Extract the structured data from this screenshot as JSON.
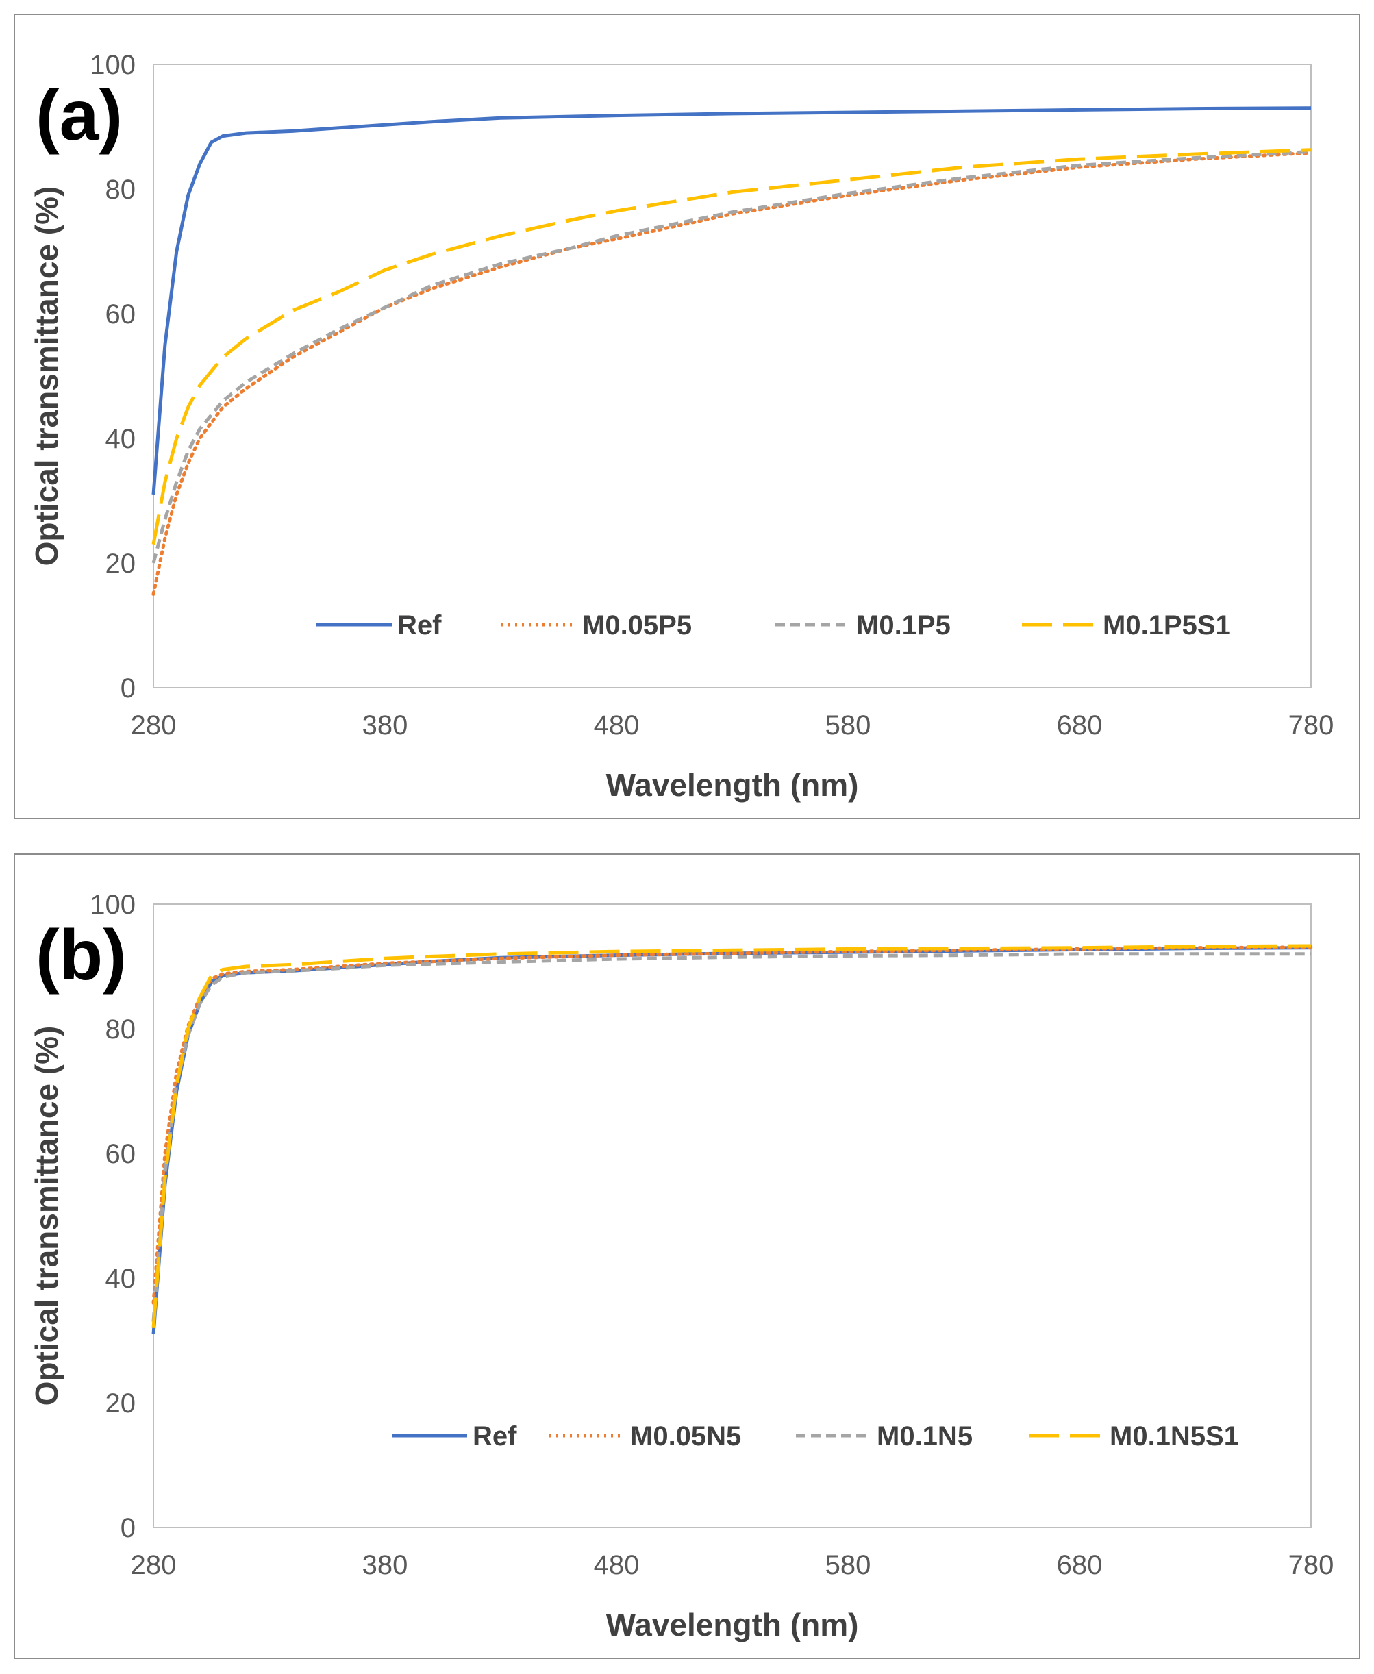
{
  "chart_data": [
    {
      "type": "line",
      "panel_label": "(a)",
      "xlabel": "Wavelength (nm)",
      "ylabel": "Optical transmittance (%)",
      "xlim": [
        280,
        780
      ],
      "ylim": [
        0,
        100
      ],
      "xticks": [
        "280",
        "380",
        "480",
        "580",
        "680",
        "780"
      ],
      "yticks": [
        "0",
        "20",
        "40",
        "60",
        "80",
        "100"
      ],
      "legend_position": "bottom-center",
      "series": [
        {
          "name": "Ref",
          "color": "#4472C4",
          "dash": "solid",
          "x": [
            280,
            285,
            290,
            295,
            300,
            305,
            310,
            320,
            340,
            360,
            380,
            400,
            430,
            480,
            530,
            580,
            630,
            680,
            730,
            780
          ],
          "y": [
            31,
            55,
            70,
            79,
            84,
            87.5,
            88.5,
            89,
            89.3,
            89.8,
            90.3,
            90.8,
            91.4,
            91.8,
            92.1,
            92.3,
            92.5,
            92.7,
            92.9,
            93
          ]
        },
        {
          "name": "M0.05P5",
          "color": "#ED7D31",
          "dash": "dot",
          "x": [
            280,
            285,
            290,
            295,
            300,
            310,
            320,
            340,
            360,
            380,
            400,
            430,
            460,
            480,
            530,
            580,
            630,
            680,
            730,
            780
          ],
          "y": [
            15,
            24,
            31,
            36,
            40,
            45,
            48,
            53,
            57,
            61,
            64,
            67.5,
            70.5,
            72,
            76,
            79,
            81.5,
            83.5,
            84.8,
            85.8
          ]
        },
        {
          "name": "M0.1P5",
          "color": "#A5A5A5",
          "dash": "dash",
          "x": [
            280,
            285,
            290,
            295,
            300,
            310,
            320,
            340,
            360,
            380,
            400,
            430,
            460,
            480,
            530,
            580,
            630,
            680,
            730,
            780
          ],
          "y": [
            20,
            27,
            33,
            38,
            41.5,
            46,
            49,
            53.5,
            57.5,
            61,
            64.5,
            68,
            70.5,
            72.5,
            76.3,
            79.3,
            81.8,
            83.8,
            85,
            86
          ]
        },
        {
          "name": "M0.1P5S1",
          "color": "#FFC000",
          "dash": "longdash",
          "x": [
            280,
            285,
            290,
            295,
            300,
            310,
            320,
            340,
            360,
            380,
            400,
            430,
            460,
            480,
            530,
            580,
            630,
            680,
            730,
            780
          ],
          "y": [
            23,
            33,
            40,
            45,
            48.5,
            53,
            56,
            60.5,
            63.5,
            67,
            69.5,
            72.5,
            75,
            76.5,
            79.5,
            81.5,
            83.5,
            84.8,
            85.6,
            86.3
          ]
        }
      ]
    },
    {
      "type": "line",
      "panel_label": "(b)",
      "xlabel": "Wavelength (nm)",
      "ylabel": "Optical transmittance (%)",
      "xlim": [
        280,
        780
      ],
      "ylim": [
        0,
        100
      ],
      "xticks": [
        "280",
        "380",
        "480",
        "580",
        "680",
        "780"
      ],
      "yticks": [
        "0",
        "20",
        "40",
        "60",
        "80",
        "100"
      ],
      "legend_position": "bottom-center",
      "series": [
        {
          "name": "Ref",
          "color": "#4472C4",
          "dash": "solid",
          "x": [
            280,
            285,
            290,
            295,
            300,
            305,
            310,
            320,
            340,
            360,
            380,
            400,
            430,
            480,
            530,
            580,
            630,
            680,
            730,
            780
          ],
          "y": [
            31,
            55,
            70,
            79,
            84,
            87.5,
            88.5,
            89,
            89.3,
            89.8,
            90.3,
            90.8,
            91.4,
            91.8,
            92.1,
            92.3,
            92.5,
            92.7,
            92.9,
            93
          ]
        },
        {
          "name": "M0.05N5",
          "color": "#ED7D31",
          "dash": "dot",
          "x": [
            280,
            285,
            290,
            295,
            300,
            305,
            310,
            320,
            340,
            360,
            380,
            400,
            430,
            480,
            530,
            580,
            630,
            680,
            730,
            780
          ],
          "y": [
            36,
            60,
            73,
            80.5,
            85,
            88,
            88.8,
            89.2,
            89.5,
            90,
            90.5,
            90.8,
            91.3,
            91.8,
            92.1,
            92.4,
            92.6,
            92.8,
            93,
            93.1
          ]
        },
        {
          "name": "M0.1N5",
          "color": "#A5A5A5",
          "dash": "dash",
          "x": [
            280,
            285,
            290,
            295,
            300,
            305,
            310,
            320,
            340,
            360,
            380,
            400,
            430,
            480,
            530,
            580,
            630,
            680,
            730,
            780
          ],
          "y": [
            33,
            57,
            71,
            79,
            84,
            87,
            88.3,
            89,
            89.3,
            89.7,
            90.2,
            90.4,
            90.7,
            91.2,
            91.5,
            91.7,
            91.8,
            92,
            92,
            92
          ]
        },
        {
          "name": "M0.1N5S1",
          "color": "#FFC000",
          "dash": "longdash",
          "x": [
            280,
            285,
            290,
            295,
            300,
            305,
            310,
            320,
            340,
            360,
            380,
            400,
            430,
            480,
            530,
            580,
            630,
            680,
            730,
            780
          ],
          "y": [
            32,
            56,
            71,
            80,
            85,
            88.5,
            89.5,
            90,
            90.3,
            90.8,
            91.3,
            91.6,
            92,
            92.4,
            92.6,
            92.8,
            92.9,
            93,
            93.2,
            93.3
          ]
        }
      ]
    }
  ]
}
